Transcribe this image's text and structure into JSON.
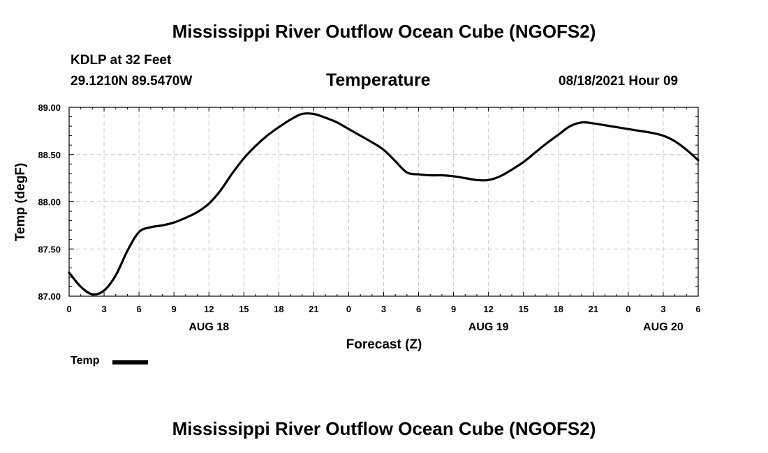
{
  "header": {
    "title_top": "Mississippi River Outflow Ocean Cube (NGOFS2)",
    "station": "KDLP at 32 Feet",
    "coordinates": "29.1210N  89.5470W",
    "subtitle": "Temperature",
    "forecast_time": "08/18/2021 Hour 09"
  },
  "footer": {
    "title_bottom": "Mississippi River Outflow Ocean Cube (NGOFS2)"
  },
  "legend": {
    "label": "Temp"
  },
  "chart_data": {
    "type": "line",
    "title": "Temperature",
    "xlabel": "Forecast (Z)",
    "ylabel": "Temp (degF)",
    "ylim": [
      87.0,
      89.0
    ],
    "xlim": [
      0,
      54
    ],
    "grid": true,
    "legend_position": "bottom-left",
    "yticks": [
      "87.00",
      "87.50",
      "88.00",
      "88.50",
      "89.00"
    ],
    "ytick_values": [
      87.0,
      87.5,
      88.0,
      88.5,
      89.0
    ],
    "xtick_labels": [
      "0",
      "3",
      "6",
      "9",
      "12",
      "15",
      "18",
      "21",
      "0",
      "3",
      "6",
      "9",
      "12",
      "15",
      "18",
      "21",
      "0",
      "3",
      "6"
    ],
    "date_labels": [
      {
        "label": "AUG 18",
        "hour": 12
      },
      {
        "label": "AUG 19",
        "hour": 36
      },
      {
        "label": "AUG 20",
        "hour": 51
      }
    ],
    "series": [
      {
        "name": "Temp",
        "color": "#000000",
        "x": [
          0,
          1,
          2,
          3,
          4,
          5,
          6,
          7,
          8,
          9,
          10,
          11,
          12,
          13,
          14,
          15,
          16,
          17,
          18,
          19,
          20,
          21,
          22,
          23,
          24,
          25,
          26,
          27,
          28,
          29,
          30,
          31,
          32,
          33,
          34,
          35,
          36,
          37,
          38,
          39,
          40,
          41,
          42,
          43,
          44,
          45,
          46,
          47,
          48,
          49,
          50,
          51,
          52,
          53,
          54
        ],
        "values": [
          87.25,
          87.1,
          87.02,
          87.06,
          87.22,
          87.48,
          87.68,
          87.73,
          87.75,
          87.78,
          87.83,
          87.89,
          87.98,
          88.12,
          88.3,
          88.46,
          88.59,
          88.7,
          88.79,
          88.87,
          88.93,
          88.93,
          88.89,
          88.84,
          88.77,
          88.7,
          88.63,
          88.55,
          88.43,
          88.31,
          88.29,
          88.28,
          88.28,
          88.27,
          88.25,
          88.23,
          88.23,
          88.27,
          88.34,
          88.42,
          88.52,
          88.62,
          88.71,
          88.8,
          88.84,
          88.83,
          88.81,
          88.79,
          88.77,
          88.75,
          88.73,
          88.7,
          88.64,
          88.55,
          88.44
        ]
      }
    ]
  }
}
